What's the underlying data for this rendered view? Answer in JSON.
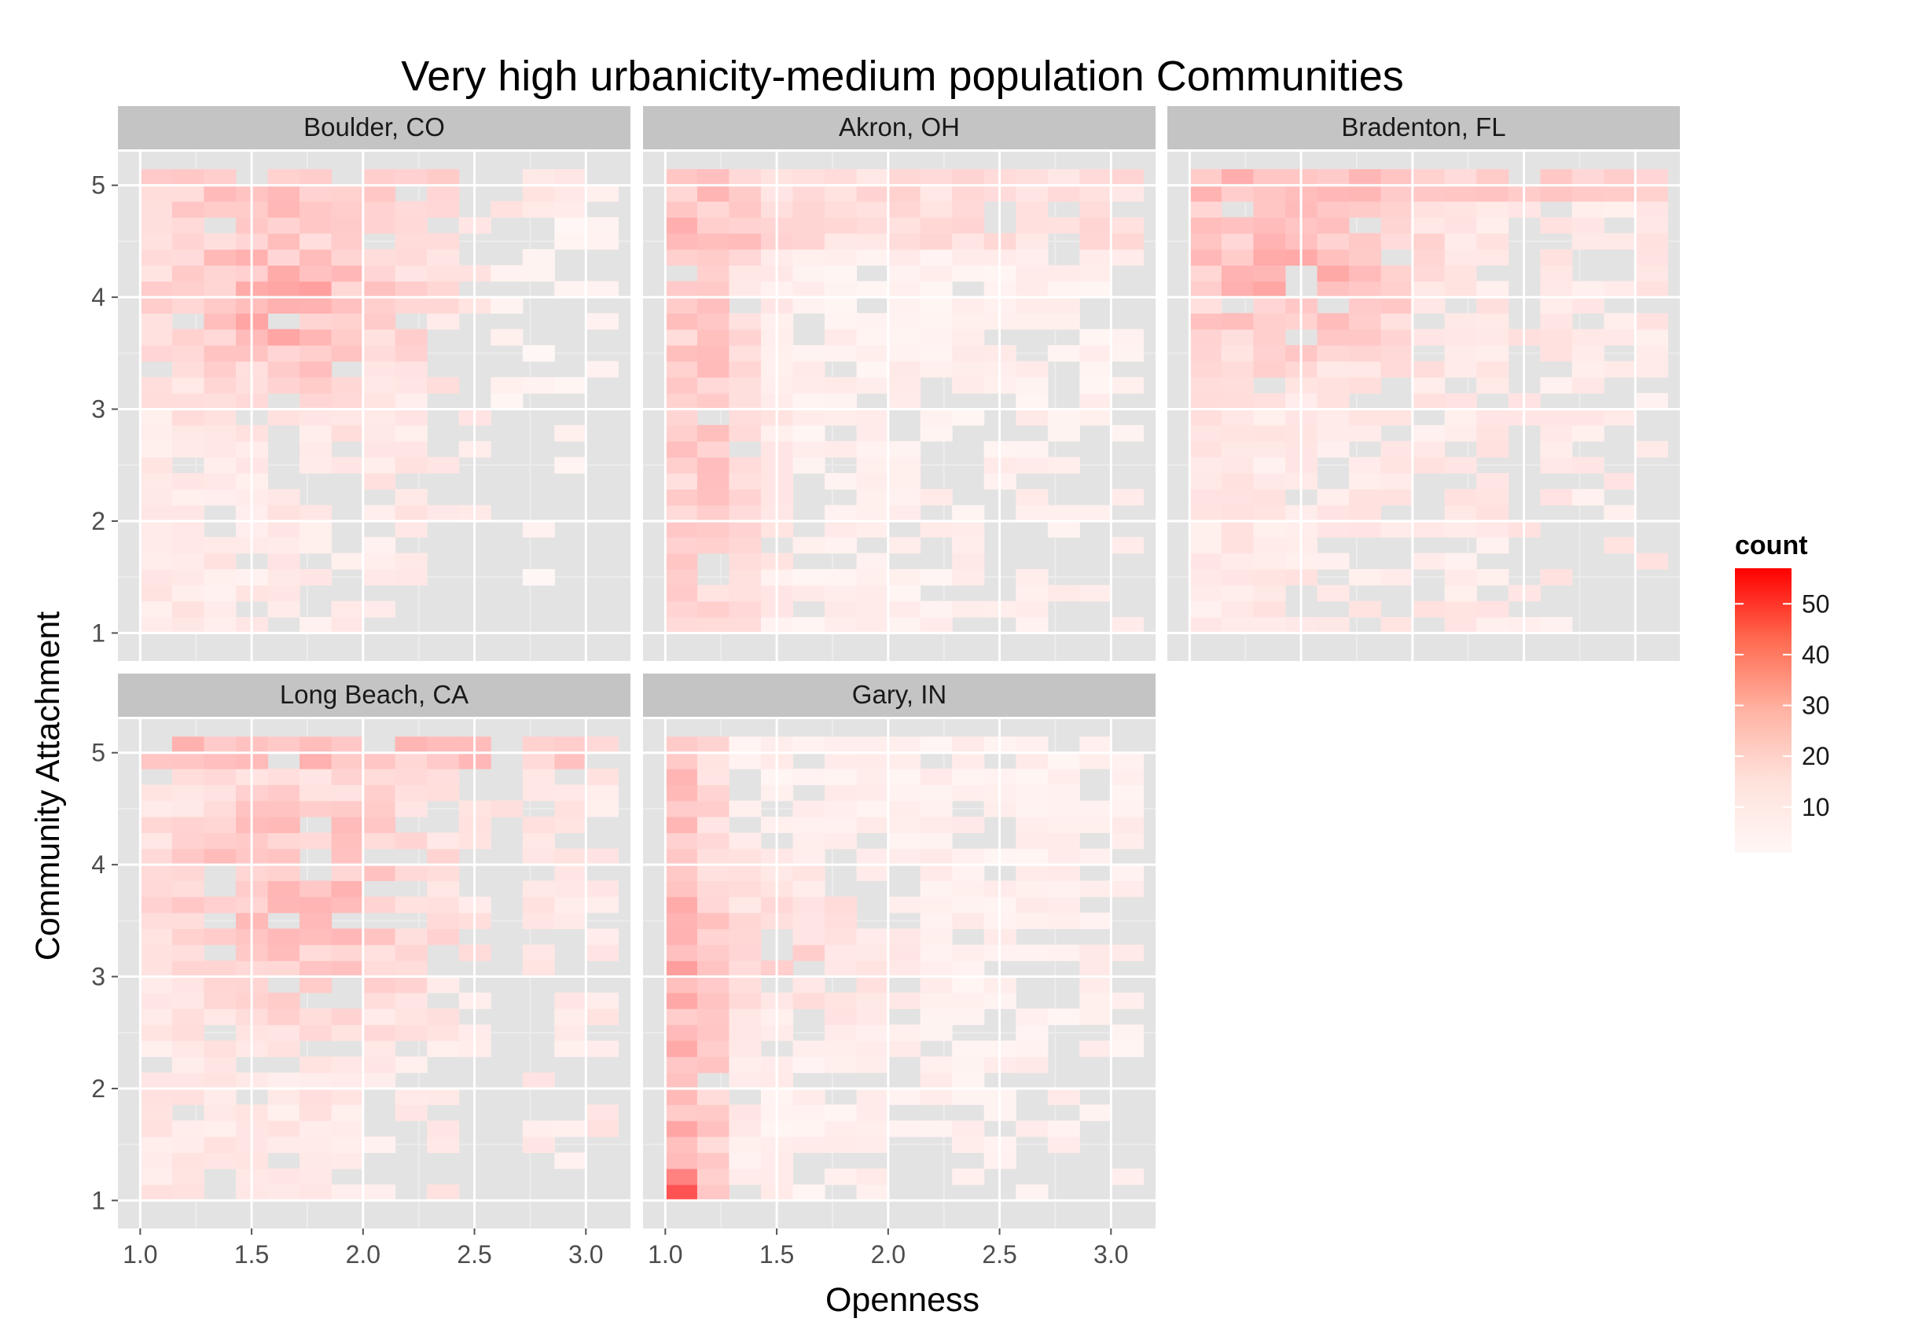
{
  "chart_data": {
    "type": "heatmap",
    "title": "Very high urbanicity-medium population Communities",
    "xlabel": "Openness",
    "ylabel": "Community Attachment",
    "xlim": [
      0.9,
      3.2
    ],
    "ylim": [
      0.75,
      5.3
    ],
    "x_ticks": [
      1.0,
      1.5,
      2.0,
      2.5,
      3.0
    ],
    "x_tick_labels": [
      "1.0",
      "1.5",
      "2.0",
      "2.5",
      "3.0"
    ],
    "y_ticks": [
      1,
      2,
      3,
      4,
      5
    ],
    "y_tick_labels": [
      "1",
      "2",
      "3",
      "4",
      "5"
    ],
    "bins_x": {
      "start": 1.0,
      "width": 0.143,
      "count": 15
    },
    "bins_y": {
      "start": 1.0,
      "width": 0.1429,
      "count": 29
    },
    "color_scale": {
      "low": "#fff7f5",
      "high": "#ff0000",
      "min": 1,
      "max": 57
    },
    "legend": {
      "title": "count",
      "labels": [
        "10",
        "20",
        "30",
        "40",
        "50"
      ],
      "values": [
        10,
        20,
        30,
        40,
        50
      ],
      "position": "right"
    },
    "grid": true,
    "panels": [
      {
        "label": "Boulder, CO",
        "profile": "boulder",
        "seed": 11
      },
      {
        "label": "Akron, OH",
        "profile": "akron",
        "seed": 23
      },
      {
        "label": "Bradenton, FL",
        "profile": "bradenton",
        "seed": 37
      },
      {
        "label": "Long Beach, CA",
        "profile": "longbeach",
        "seed": 41
      },
      {
        "label": "Gary, IN",
        "profile": "gary",
        "seed": 53
      }
    ]
  },
  "colors": {
    "panel_bg": "#e3e3e3",
    "strip_bg": "#c4c4c4",
    "grid_major": "#ffffff",
    "grid_minor": "#ececec"
  }
}
